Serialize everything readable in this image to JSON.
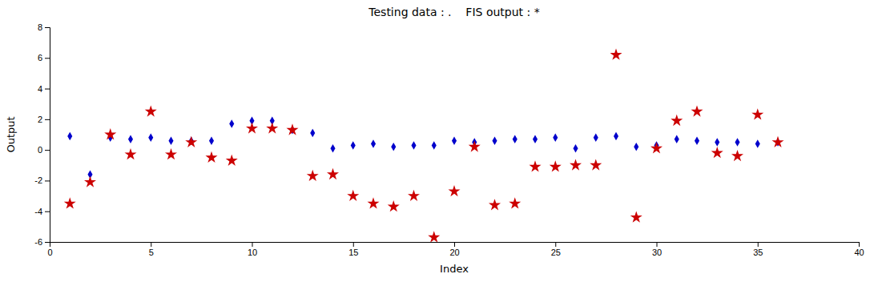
{
  "chart_data": {
    "type": "scatter",
    "title": "Testing data : .    FIS output : *",
    "xlabel": "Index",
    "ylabel": "Output",
    "xlim": [
      0,
      40
    ],
    "ylim": [
      -6,
      8
    ],
    "xticks": [
      0,
      5,
      10,
      15,
      20,
      25,
      30,
      35,
      40
    ],
    "yticks": [
      -6,
      -4,
      -2,
      0,
      2,
      4,
      6,
      8
    ],
    "grid": false,
    "x": [
      1,
      2,
      3,
      4,
      5,
      6,
      7,
      8,
      9,
      10,
      11,
      12,
      13,
      14,
      15,
      16,
      17,
      18,
      19,
      20,
      21,
      22,
      23,
      24,
      25,
      26,
      27,
      28,
      29,
      30,
      31,
      32,
      33,
      34,
      35,
      36
    ],
    "series": [
      {
        "color": "#0000cc",
        "marker": "diamond",
        "values": [
          0.9,
          -1.6,
          0.8,
          0.7,
          0.8,
          0.6,
          0.6,
          0.6,
          1.7,
          1.9,
          1.9,
          1.3,
          1.1,
          0.1,
          0.3,
          0.4,
          0.2,
          0.3,
          0.3,
          0.6,
          0.5,
          0.6,
          0.7,
          0.7,
          0.8,
          0.1,
          0.8,
          0.9,
          0.2,
          0.3,
          0.7,
          0.6,
          0.5,
          0.5,
          0.4,
          0.5
        ]
      },
      {
        "color": "#cc0000",
        "marker": "star",
        "values": [
          -3.5,
          -2.1,
          1.0,
          -0.3,
          2.5,
          -0.3,
          0.5,
          -0.5,
          -0.7,
          1.4,
          1.4,
          1.3,
          -1.7,
          -1.6,
          -3.0,
          -3.5,
          -3.7,
          -3.0,
          -5.7,
          -2.7,
          0.2,
          -3.6,
          -3.5,
          -1.1,
          -1.1,
          -1.0,
          -1.0,
          6.2,
          -4.4,
          0.1,
          1.9,
          2.5,
          -0.2,
          -0.4,
          2.3,
          0.5
        ]
      }
    ]
  }
}
